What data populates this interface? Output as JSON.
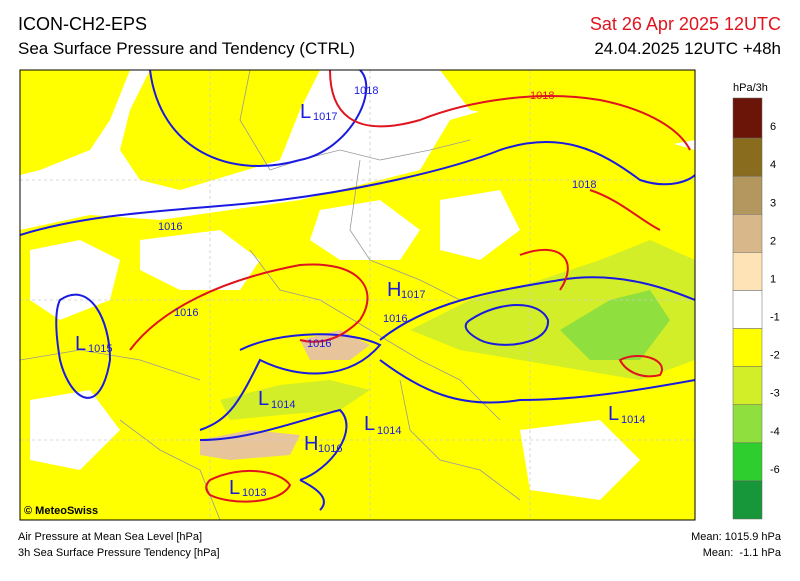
{
  "header": {
    "model": "ICON-CH2-EPS",
    "title": "Sea Surface Pressure and Tendency (CTRL)",
    "valid": "Sat 26 Apr 2025 12UTC",
    "run": "24.04.2025 12UTC +48h"
  },
  "colorbar": {
    "unit": "hPa/3h",
    "ticks": [
      "6",
      "4",
      "3",
      "2",
      "1",
      "-1",
      "-2",
      "-3",
      "-4",
      "-6"
    ],
    "colors": [
      "#6b1509",
      "#8a6c1e",
      "#b3975e",
      "#d8b88a",
      "#fde3b6",
      "#ffffff",
      "#ffff00",
      "#d2ee28",
      "#8fdf3e",
      "#2fce2f",
      "#17963a"
    ]
  },
  "map": {
    "centers": [
      {
        "letter": "L",
        "value": "1017"
      },
      {
        "letter": "H",
        "value": "1017"
      },
      {
        "letter": "L",
        "value": "1015"
      },
      {
        "letter": "L",
        "value": "1014"
      },
      {
        "letter": "L",
        "value": "1014"
      },
      {
        "letter": "H",
        "value": "1016"
      },
      {
        "letter": "L",
        "value": "1014"
      },
      {
        "letter": "L",
        "value": "1013"
      }
    ],
    "isobar_labels": [
      "1018",
      "1018",
      "1016",
      "1018",
      "1016",
      "1016",
      "1016"
    ],
    "credit": "© MeteoSwiss"
  },
  "footer": {
    "left": [
      "Air Pressure at Mean Sea Level [hPa]",
      "3h Sea Surface Pressure Tendency [hPa]"
    ],
    "right": [
      "Mean: 1015.9 hPa",
      "Mean:  -1.1 hPa"
    ]
  }
}
